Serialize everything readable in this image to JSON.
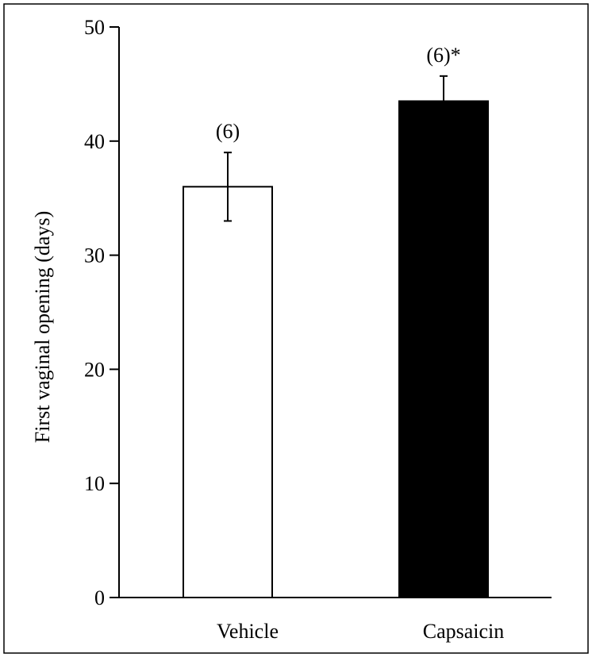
{
  "chart_data": {
    "type": "bar",
    "title": "",
    "xlabel": "",
    "ylabel": "First vaginal opening (days)",
    "ylim": [
      0,
      50
    ],
    "yticks": [
      0,
      10,
      20,
      30,
      40,
      50
    ],
    "grid": false,
    "categories": [
      "Vehicle",
      "Capsaicin"
    ],
    "values": [
      36,
      43.5
    ],
    "errors": [
      3,
      2.2
    ],
    "bar_annotations": [
      "(6)",
      "(6)*"
    ],
    "bar_colors": [
      "#ffffff",
      "#000000"
    ]
  }
}
